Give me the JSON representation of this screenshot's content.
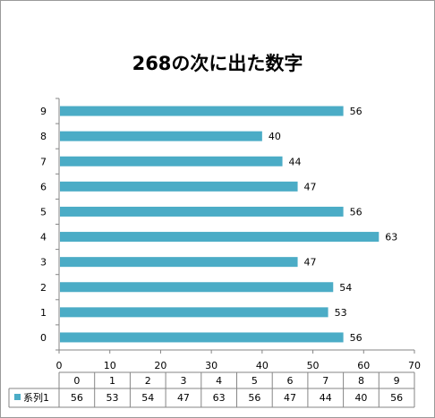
{
  "chart_data": {
    "type": "bar",
    "orientation": "horizontal",
    "title": "268の次に出た数字",
    "categories": [
      "0",
      "1",
      "2",
      "3",
      "4",
      "5",
      "6",
      "7",
      "8",
      "9"
    ],
    "series": [
      {
        "name": "系列1",
        "values": [
          56,
          53,
          54,
          47,
          63,
          56,
          47,
          44,
          40,
          56
        ],
        "color": "#4bacc6"
      }
    ],
    "xlim": [
      0,
      70
    ],
    "x_ticks": [
      "0",
      "10",
      "20",
      "30",
      "40",
      "50",
      "60",
      "70"
    ],
    "grid": false,
    "data_table": true,
    "data_labels": true
  }
}
